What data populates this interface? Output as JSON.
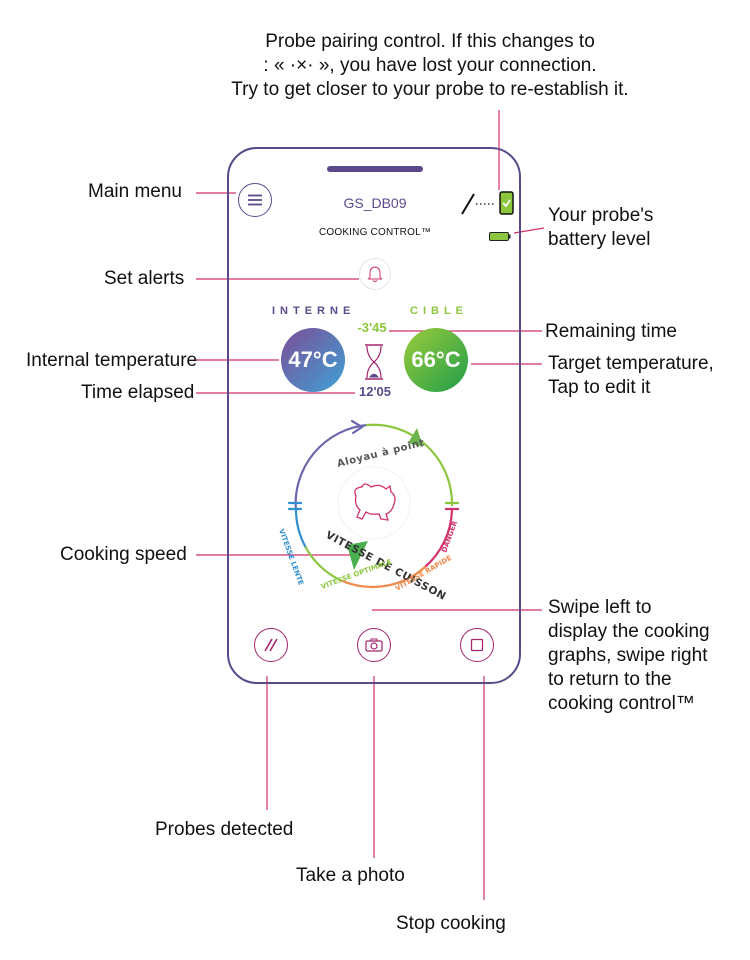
{
  "colors": {
    "frame": "#5b4a8b",
    "accent": "#a3266f",
    "leader_line": "#d1306a",
    "internal_gradient": [
      "#7c4d96",
      "#3fa1d6"
    ],
    "target_gradient": [
      "#9ccc3c",
      "#1f9e49"
    ],
    "slow": "#2f8fd0",
    "optimal": "#8cc63f",
    "fast": "#f08a4b",
    "danger": "#d1306a"
  },
  "annotations": {
    "pairing": "Probe pairing control. If this changes to\n: «  ·×·  », you have lost your connection.\nTry to get closer to your probe to re-establish it.",
    "main_menu": "Main menu",
    "battery": "Your probe's\nbattery level",
    "set_alerts": "Set alerts",
    "remaining_time": "Remaining time",
    "internal_temp": "Internal temperature",
    "target_temp": "Target temperature,\nTap to edit it",
    "time_elapsed": "Time elapsed",
    "cooking_speed": "Cooking speed",
    "swipe": "Swipe left to\ndisplay the cooking\ngraphs, swipe right\nto return to the\ncooking control™",
    "probes_detected": "Probes detected",
    "take_photo": "Take a photo",
    "stop_cooking": "Stop cooking"
  },
  "app": {
    "probe_name": "GS_DB09",
    "mode_title": "COOKING CONTROL™",
    "label_internal": "INTERNE",
    "label_target": "CIBLE",
    "internal_temp": "47°C",
    "target_temp": "66°C",
    "remaining_time": "-3'45",
    "elapsed_time": "12'05",
    "dish_label": "Aloyau à point",
    "speed_title": "VITESSE DE CUISSON",
    "zone_slow": "VITESSE LENTE",
    "zone_optimal": "VITESSE OPTIMALE",
    "zone_fast": "VITESSE RAPIDE",
    "zone_danger": "DANGER"
  },
  "icons": {
    "menu": "hamburger-menu-icon",
    "link": "probe-link-icon",
    "phone": "phone-check-icon",
    "battery": "battery-icon",
    "bell": "bell-icon",
    "hourglass": "hourglass-icon",
    "beef": "beef-icon",
    "probes": "probes-icon",
    "camera": "camera-icon",
    "stop": "stop-square-icon"
  }
}
